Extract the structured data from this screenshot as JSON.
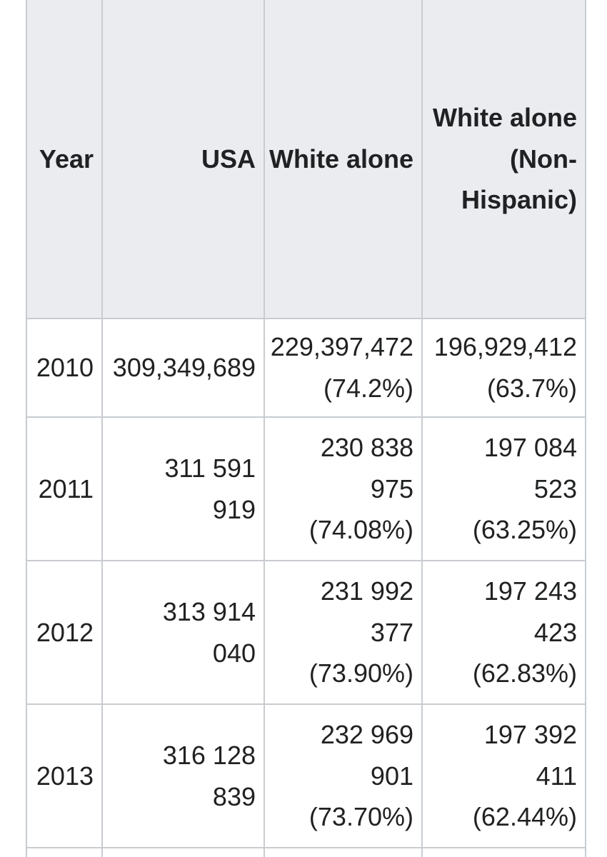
{
  "table": {
    "columns": [
      {
        "key": "year",
        "label": "Year"
      },
      {
        "key": "usa",
        "label": "USA"
      },
      {
        "key": "white_alone",
        "label": "White alone"
      },
      {
        "key": "white_alone_non_hispanic",
        "label": "White alone\n(Non-\nHispanic)"
      }
    ],
    "rows": [
      {
        "year": "2010",
        "usa": "309,349,689",
        "white_alone": "229,397,472\n(74.2%)",
        "white_alone_non_hispanic": "196,929,412\n(63.7%)"
      },
      {
        "year": "2011",
        "usa": "311 591\n919",
        "white_alone": "230 838\n975\n(74.08%)",
        "white_alone_non_hispanic": "197 084\n523\n(63.25%)"
      },
      {
        "year": "2012",
        "usa": "313 914\n040",
        "white_alone": "231 992\n377\n(73.90%)",
        "white_alone_non_hispanic": "197 243\n423\n(62.83%)"
      },
      {
        "year": "2013",
        "usa": "316 128\n839",
        "white_alone": "232 969\n901\n(73.70%)",
        "white_alone_non_hispanic": "197 392\n411\n(62.44%)"
      }
    ]
  },
  "colors": {
    "header_bg": "#eaecf0",
    "border": "#c8ccd1",
    "text": "#202122",
    "row_bg": "#ffffff"
  }
}
